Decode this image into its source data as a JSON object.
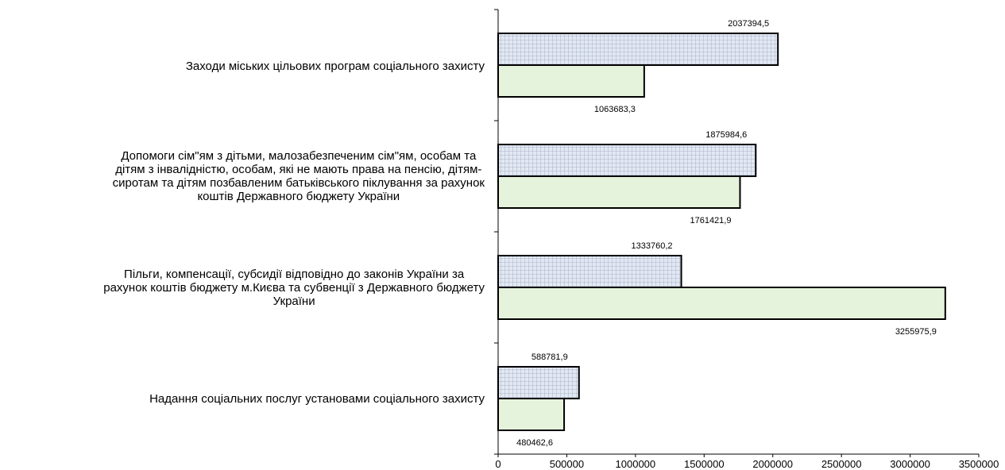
{
  "chart_data": {
    "type": "bar",
    "orientation": "horizontal",
    "categories": [
      "Заходи міських цільових програм соціального захисту",
      "Допомоги сім\"ям з дітьми, малозабезпеченим сім\"ям, особам та дітям з  інвалідністю, особам, які не мають права на пенсію, дітям-сиротам та дітям позбавленим батьківського піклування за рахунок коштів Державного бюджету України",
      "Пільги,   компенсації, субсидії відповідно до законів України за рахунок коштів бюджету м.Києва та субвенції з Державного бюджету України",
      "Надання соціальних послуг установами соціального захисту"
    ],
    "category_lines": [
      [
        "Заходи міських цільових програм соціального захисту"
      ],
      [
        "Допомоги сім\"ям з дітьми, малозабезпеченим сім\"ям, особам та",
        "дітям з  інвалідністю, особам, які не мають права на пенсію, дітям-",
        "сиротам та дітям позбавленим батьківського піклування за рахунок",
        "коштів Державного бюджету України"
      ],
      [
        "Пільги,   компенсації, субсидії відповідно до законів України за",
        "рахунок коштів бюджету м.Києва та субвенції з Державного бюджету",
        "України"
      ],
      [
        "Надання соціальних послуг установами соціального захисту"
      ]
    ],
    "series": [
      {
        "values": [
          2037394.5,
          1875984.6,
          1333760.2,
          588781.9
        ],
        "labels": [
          "2037394,5",
          "1875984,6",
          "1333760,2",
          "588781,9"
        ],
        "fill": "#dfe6f2",
        "pattern": "grid"
      },
      {
        "values": [
          1063683.3,
          1761421.9,
          3255975.9,
          480462.6
        ],
        "labels": [
          "1063683,3",
          "1761421,9",
          "3255975,9",
          "480462,6"
        ],
        "fill": "#e6f3dc",
        "pattern": "solid"
      }
    ],
    "xlim": [
      0,
      3500000
    ],
    "xticks": [
      0,
      500000,
      1000000,
      1500000,
      2000000,
      2500000,
      3000000,
      3500000
    ],
    "xtick_labels": [
      "0",
      "500000",
      "1000000",
      "1500000",
      "2000000",
      "2500000",
      "3000000",
      "3500000"
    ],
    "grid": false,
    "legend": "none",
    "title": "",
    "xlabel": "",
    "ylabel": ""
  }
}
